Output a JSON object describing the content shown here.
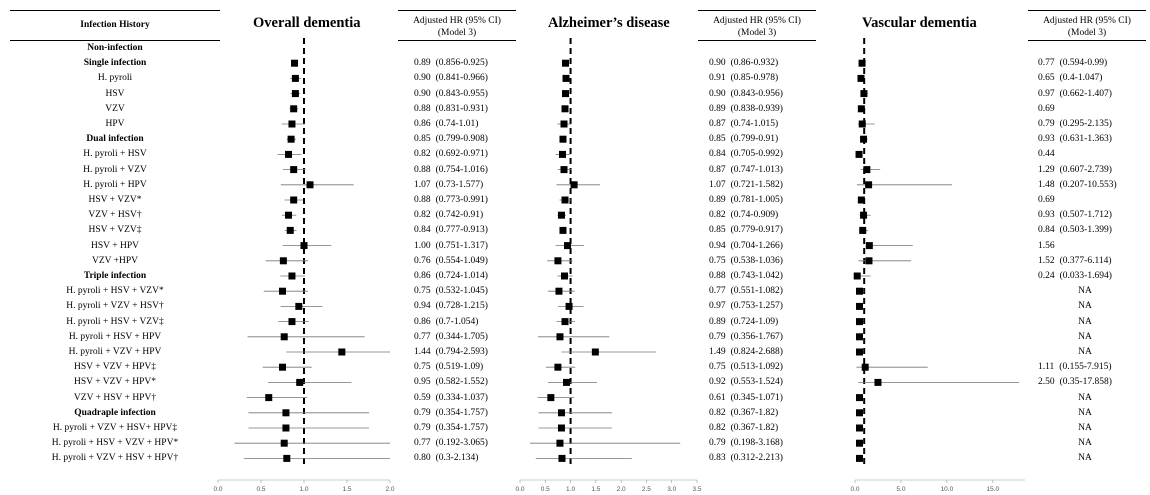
{
  "left_header": "Infection History",
  "column_header": "Adjusted HR (95% CI) (Model 3)",
  "column_header_lines": [
    "Adjusted HR (95% CI)",
    "(Model 3)"
  ],
  "panel_titles": [
    "Overall dementia",
    "Alzheimer’s disease",
    "Vascular dementia"
  ],
  "rows": [
    {
      "label": "Non-infection",
      "header": true
    },
    {
      "label": "Single infection",
      "header": true
    },
    {
      "label": "H. pyroli"
    },
    {
      "label": "HSV"
    },
    {
      "label": "VZV"
    },
    {
      "label": "HPV"
    },
    {
      "label": "Dual infection",
      "header": true
    },
    {
      "label": "H. pyroli + HSV"
    },
    {
      "label": "H. pyroli + VZV"
    },
    {
      "label": "H. pyroli + HPV"
    },
    {
      "label": "HSV + VZV*"
    },
    {
      "label": "VZV + HSV†"
    },
    {
      "label": "HSV + VZV‡"
    },
    {
      "label": "HSV + HPV"
    },
    {
      "label": "VZV +HPV"
    },
    {
      "label": "Triple infection",
      "header": true
    },
    {
      "label": "H. pyroli + HSV + VZV*"
    },
    {
      "label": "H. pyroli + VZV + HSV†"
    },
    {
      "label": "H. pyroli + HSV + VZV‡"
    },
    {
      "label": "H. pyroli + HSV + HPV"
    },
    {
      "label": "H. pyroli + VZV + HPV"
    },
    {
      "label": "HSV + VZV + HPV‡"
    },
    {
      "label": "HSV + VZV + HPV*"
    },
    {
      "label": "VZV + HSV + HPV†"
    },
    {
      "label": "Quadraple infection",
      "header": true
    },
    {
      "label": "H. pyroli + VZV   + HSV+ HPV‡"
    },
    {
      "label": "H. pyroli + HSV + VZV + HPV*"
    },
    {
      "label": "H. pyroli + VZV + HSV + HPV†"
    }
  ],
  "chart_data": [
    {
      "type": "forest",
      "title": "Overall dementia",
      "xlim": [
        0,
        2
      ],
      "x_ticks": [
        "0.0",
        "0.5",
        "1.0",
        "1.5",
        "2.0"
      ],
      "reference_line": 1,
      "points": [
        {
          "hr": 0.89,
          "lo": 0.856,
          "hi": 0.925,
          "hr_text": "0.89",
          "ci_text": "(0.856-0.925)"
        },
        {
          "hr": 0.9,
          "lo": 0.841,
          "hi": 0.966,
          "hr_text": "0.90",
          "ci_text": "(0.841-0.966)"
        },
        {
          "hr": 0.9,
          "lo": 0.843,
          "hi": 0.955,
          "hr_text": "0.90",
          "ci_text": "(0.843-0.955)"
        },
        {
          "hr": 0.88,
          "lo": 0.831,
          "hi": 0.931,
          "hr_text": "0.88",
          "ci_text": "(0.831-0.931)"
        },
        {
          "hr": 0.86,
          "lo": 0.74,
          "hi": 1.01,
          "hr_text": "0.86",
          "ci_text": "(0.74-1.01)"
        },
        {
          "hr": 0.85,
          "lo": 0.799,
          "hi": 0.908,
          "hr_text": "0.85",
          "ci_text": "(0.799-0.908)"
        },
        {
          "hr": 0.82,
          "lo": 0.692,
          "hi": 0.971,
          "hr_text": "0.82",
          "ci_text": "(0.692-0.971)"
        },
        {
          "hr": 0.88,
          "lo": 0.754,
          "hi": 1.016,
          "hr_text": "0.88",
          "ci_text": "(0.754-1.016)"
        },
        {
          "hr": 1.07,
          "lo": 0.73,
          "hi": 1.577,
          "hr_text": "1.07",
          "ci_text": "(0.73-1.577)"
        },
        {
          "hr": 0.88,
          "lo": 0.773,
          "hi": 0.991,
          "hr_text": "0.88",
          "ci_text": "(0.773-0.991)"
        },
        {
          "hr": 0.82,
          "lo": 0.742,
          "hi": 0.91,
          "hr_text": "0.82",
          "ci_text": "(0.742-0.91)"
        },
        {
          "hr": 0.84,
          "lo": 0.777,
          "hi": 0.913,
          "hr_text": "0.84",
          "ci_text": "(0.777-0.913)"
        },
        {
          "hr": 1.0,
          "lo": 0.751,
          "hi": 1.317,
          "hr_text": "1.00",
          "ci_text": "(0.751-1.317)"
        },
        {
          "hr": 0.76,
          "lo": 0.554,
          "hi": 1.049,
          "hr_text": "0.76",
          "ci_text": "(0.554-1.049)"
        },
        {
          "hr": 0.86,
          "lo": 0.724,
          "hi": 1.014,
          "hr_text": "0.86",
          "ci_text": "(0.724-1.014)"
        },
        {
          "hr": 0.75,
          "lo": 0.532,
          "hi": 1.045,
          "hr_text": "0.75",
          "ci_text": "(0.532-1.045)"
        },
        {
          "hr": 0.94,
          "lo": 0.728,
          "hi": 1.215,
          "hr_text": "0.94",
          "ci_text": "(0.728-1.215)"
        },
        {
          "hr": 0.86,
          "lo": 0.7,
          "hi": 1.054,
          "hr_text": "0.86",
          "ci_text": "(0.7-1.054)"
        },
        {
          "hr": 0.77,
          "lo": 0.344,
          "hi": 1.705,
          "hr_text": "0.77",
          "ci_text": "(0.344-1.705)"
        },
        {
          "hr": 1.44,
          "lo": 0.794,
          "hi": 2.593,
          "hr_text": "1.44",
          "ci_text": "(0.794-2.593)"
        },
        {
          "hr": 0.75,
          "lo": 0.519,
          "hi": 1.09,
          "hr_text": "0.75",
          "ci_text": "(0.519-1.09)"
        },
        {
          "hr": 0.95,
          "lo": 0.582,
          "hi": 1.552,
          "hr_text": "0.95",
          "ci_text": "(0.582-1.552)"
        },
        {
          "hr": 0.59,
          "lo": 0.334,
          "hi": 1.037,
          "hr_text": "0.59",
          "ci_text": "(0.334-1.037)"
        },
        {
          "hr": 0.79,
          "lo": 0.354,
          "hi": 1.757,
          "hr_text": "0.79",
          "ci_text": "(0.354-1.757)"
        },
        {
          "hr": 0.79,
          "lo": 0.354,
          "hi": 1.757,
          "hr_text": "0.79",
          "ci_text": "(0.354-1.757)"
        },
        {
          "hr": 0.77,
          "lo": 0.192,
          "hi": 3.065,
          "hr_text": "0.77",
          "ci_text": "(0.192-3.065)"
        },
        {
          "hr": 0.8,
          "lo": 0.3,
          "hi": 2.134,
          "hr_text": "0.80",
          "ci_text": "(0.3-2.134)"
        }
      ]
    },
    {
      "type": "forest",
      "title": "Alzheimer’s disease",
      "xlim": [
        0,
        3.5
      ],
      "x_ticks": [
        "0.0",
        "0.5",
        "1.0",
        "1.5",
        "2.0",
        "2.5",
        "3.0",
        "3.5"
      ],
      "reference_line": 1,
      "points": [
        {
          "hr": 0.9,
          "lo": 0.86,
          "hi": 0.932,
          "hr_text": "0.90",
          "ci_text": "(0.86-0.932)"
        },
        {
          "hr": 0.91,
          "lo": 0.85,
          "hi": 0.978,
          "hr_text": "0.91",
          "ci_text": "(0.85-0.978)"
        },
        {
          "hr": 0.9,
          "lo": 0.843,
          "hi": 0.956,
          "hr_text": "0.90",
          "ci_text": "(0.843-0.956)"
        },
        {
          "hr": 0.89,
          "lo": 0.838,
          "hi": 0.939,
          "hr_text": "0.89",
          "ci_text": "(0.838-0.939)"
        },
        {
          "hr": 0.87,
          "lo": 0.74,
          "hi": 1.015,
          "hr_text": "0.87",
          "ci_text": "(0.74-1.015)"
        },
        {
          "hr": 0.85,
          "lo": 0.799,
          "hi": 0.91,
          "hr_text": "0.85",
          "ci_text": "(0.799-0.91)"
        },
        {
          "hr": 0.84,
          "lo": 0.705,
          "hi": 0.992,
          "hr_text": "0.84",
          "ci_text": "(0.705-0.992)"
        },
        {
          "hr": 0.87,
          "lo": 0.747,
          "hi": 1.013,
          "hr_text": "0.87",
          "ci_text": "(0.747-1.013)"
        },
        {
          "hr": 1.07,
          "lo": 0.721,
          "hi": 1.582,
          "hr_text": "1.07",
          "ci_text": "(0.721-1.582)"
        },
        {
          "hr": 0.89,
          "lo": 0.781,
          "hi": 1.005,
          "hr_text": "0.89",
          "ci_text": "(0.781-1.005)"
        },
        {
          "hr": 0.82,
          "lo": 0.74,
          "hi": 0.909,
          "hr_text": "0.82",
          "ci_text": "(0.74-0.909)"
        },
        {
          "hr": 0.85,
          "lo": 0.779,
          "hi": 0.917,
          "hr_text": "0.85",
          "ci_text": "(0.779-0.917)"
        },
        {
          "hr": 0.94,
          "lo": 0.704,
          "hi": 1.266,
          "hr_text": "0.94",
          "ci_text": "(0.704-1.266)"
        },
        {
          "hr": 0.75,
          "lo": 0.538,
          "hi": 1.036,
          "hr_text": "0.75",
          "ci_text": "(0.538-1.036)"
        },
        {
          "hr": 0.88,
          "lo": 0.743,
          "hi": 1.042,
          "hr_text": "0.88",
          "ci_text": "(0.743-1.042)"
        },
        {
          "hr": 0.77,
          "lo": 0.551,
          "hi": 1.082,
          "hr_text": "0.77",
          "ci_text": "(0.551-1.082)"
        },
        {
          "hr": 0.97,
          "lo": 0.753,
          "hi": 1.257,
          "hr_text": "0.97",
          "ci_text": "(0.753-1.257)"
        },
        {
          "hr": 0.89,
          "lo": 0.724,
          "hi": 1.09,
          "hr_text": "0.89",
          "ci_text": "(0.724-1.09)"
        },
        {
          "hr": 0.79,
          "lo": 0.356,
          "hi": 1.767,
          "hr_text": "0.79",
          "ci_text": "(0.356-1.767)"
        },
        {
          "hr": 1.49,
          "lo": 0.824,
          "hi": 2.688,
          "hr_text": "1.49",
          "ci_text": "(0.824-2.688)"
        },
        {
          "hr": 0.75,
          "lo": 0.513,
          "hi": 1.092,
          "hr_text": "0.75",
          "ci_text": "(0.513-1.092)"
        },
        {
          "hr": 0.92,
          "lo": 0.553,
          "hi": 1.524,
          "hr_text": "0.92",
          "ci_text": "(0.553-1.524)"
        },
        {
          "hr": 0.61,
          "lo": 0.345,
          "hi": 1.071,
          "hr_text": "0.61",
          "ci_text": "(0.345-1.071)"
        },
        {
          "hr": 0.82,
          "lo": 0.367,
          "hi": 1.82,
          "hr_text": "0.82",
          "ci_text": "(0.367-1.82)"
        },
        {
          "hr": 0.82,
          "lo": 0.367,
          "hi": 1.82,
          "hr_text": "0.82",
          "ci_text": "(0.367-1.82)"
        },
        {
          "hr": 0.79,
          "lo": 0.198,
          "hi": 3.168,
          "hr_text": "0.79",
          "ci_text": "(0.198-3.168)"
        },
        {
          "hr": 0.83,
          "lo": 0.312,
          "hi": 2.213,
          "hr_text": "0.83",
          "ci_text": "(0.312-2.213)"
        }
      ]
    },
    {
      "type": "forest",
      "title": "Vascular dementia",
      "xlim": [
        0,
        18.5
      ],
      "x_ticks": [
        "0.0",
        "5.0",
        "10.0",
        "15.0"
      ],
      "reference_line": 1,
      "points": [
        {
          "hr": 0.77,
          "lo": 0.594,
          "hi": 0.99,
          "hr_text": "0.77",
          "ci_text": "(0.594-0.99)"
        },
        {
          "hr": 0.65,
          "lo": 0.4,
          "hi": 1.047,
          "hr_text": "0.65",
          "ci_text": "(0.4-1.047)"
        },
        {
          "hr": 0.97,
          "lo": 0.662,
          "hi": 1.407,
          "hr_text": "0.97",
          "ci_text": "(0.662-1.407)"
        },
        {
          "hr": 0.69,
          "lo": null,
          "hi": null,
          "hr_text": "0.69",
          "ci_text": ""
        },
        {
          "hr": 0.79,
          "lo": 0.295,
          "hi": 2.135,
          "hr_text": "0.79",
          "ci_text": "(0.295-2.135)"
        },
        {
          "hr": 0.93,
          "lo": 0.631,
          "hi": 1.363,
          "hr_text": "0.93",
          "ci_text": "(0.631-1.363)"
        },
        {
          "hr": 0.44,
          "lo": null,
          "hi": null,
          "hr_text": "0.44",
          "ci_text": ""
        },
        {
          "hr": 1.29,
          "lo": 0.607,
          "hi": 2.739,
          "hr_text": "1.29",
          "ci_text": "(0.607-2.739)"
        },
        {
          "hr": 1.48,
          "lo": 0.207,
          "hi": 10.553,
          "hr_text": "1.48",
          "ci_text": "(0.207-10.553)"
        },
        {
          "hr": 0.69,
          "lo": null,
          "hi": null,
          "hr_text": "0.69",
          "ci_text": ""
        },
        {
          "hr": 0.93,
          "lo": 0.507,
          "hi": 1.712,
          "hr_text": "0.93",
          "ci_text": "(0.507-1.712)"
        },
        {
          "hr": 0.84,
          "lo": 0.503,
          "hi": 1.399,
          "hr_text": "0.84",
          "ci_text": "(0.503-1.399)"
        },
        {
          "hr": 1.56,
          "lo": null,
          "hi": null,
          "hr_text": "1.56",
          "ci_text": "",
          "visual_hi": 6.3
        },
        {
          "hr": 1.52,
          "lo": 0.377,
          "hi": 6.114,
          "hr_text": "1.52",
          "ci_text": "(0.377-6.114)"
        },
        {
          "hr": 0.24,
          "lo": 0.033,
          "hi": 1.694,
          "hr_text": "0.24",
          "ci_text": "(0.033-1.694)"
        },
        {
          "hr": null,
          "na": true,
          "hr_text": "NA",
          "ci_text": ""
        },
        {
          "hr": null,
          "na": true,
          "hr_text": "NA",
          "ci_text": ""
        },
        {
          "hr": null,
          "na": true,
          "hr_text": "NA",
          "ci_text": ""
        },
        {
          "hr": null,
          "na": true,
          "hr_text": "NA",
          "ci_text": ""
        },
        {
          "hr": null,
          "na": true,
          "hr_text": "NA",
          "ci_text": ""
        },
        {
          "hr": 1.11,
          "lo": 0.155,
          "hi": 7.915,
          "hr_text": "1.11",
          "ci_text": "(0.155-7.915)"
        },
        {
          "hr": 2.5,
          "lo": 0.35,
          "hi": 17.858,
          "hr_text": "2.50",
          "ci_text": "(0.35-17.858)"
        },
        {
          "hr": null,
          "na": true,
          "hr_text": "NA",
          "ci_text": ""
        },
        {
          "hr": null,
          "na": true,
          "hr_text": "NA",
          "ci_text": ""
        },
        {
          "hr": null,
          "na": true,
          "hr_text": "NA",
          "ci_text": ""
        },
        {
          "hr": null,
          "na": true,
          "hr_text": "NA",
          "ci_text": ""
        },
        {
          "hr": null,
          "na": true,
          "hr_text": "NA",
          "ci_text": ""
        }
      ]
    }
  ]
}
